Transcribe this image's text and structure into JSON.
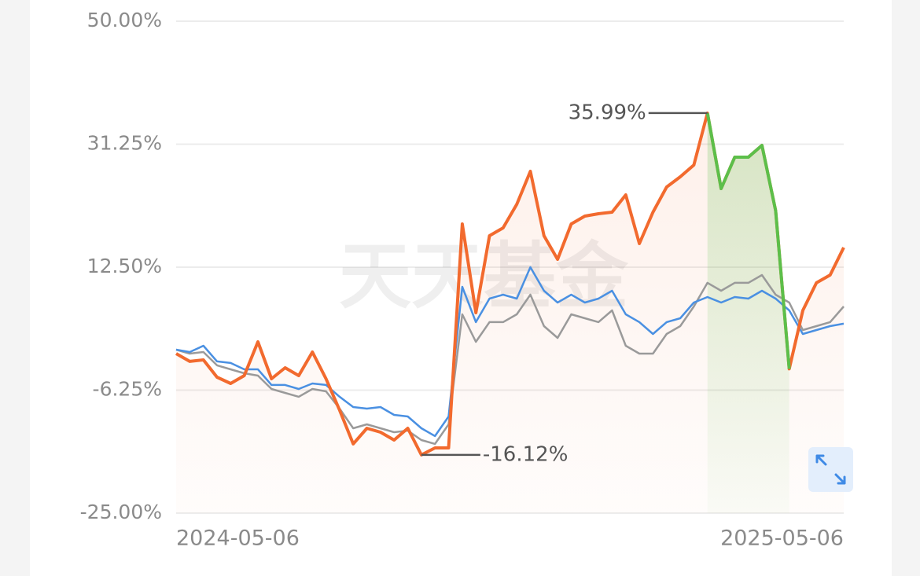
{
  "chart_data": {
    "type": "line",
    "watermark": "天天基金",
    "categories": [
      "2024-05-06",
      null,
      null,
      null,
      null,
      null,
      null,
      null,
      null,
      null,
      null,
      null,
      null,
      null,
      null,
      null,
      null,
      null,
      null,
      null,
      null,
      null,
      null,
      null,
      null,
      null,
      null,
      null,
      null,
      null,
      null,
      null,
      null,
      null,
      null,
      null,
      null,
      null,
      null,
      null,
      null,
      null,
      null,
      null,
      null,
      null,
      null,
      null,
      null,
      "2025-05-06"
    ],
    "series": [
      {
        "color": "#f26a2e",
        "values": [
          -0.68,
          -1.87,
          -1.64,
          -4.27,
          -5.23,
          -4.03,
          1.12,
          -4.51,
          -2.83,
          -4.03,
          -0.44,
          -4.51,
          -9.3,
          -14.45,
          -12.06,
          -12.66,
          -13.86,
          -12.06,
          -16.12,
          -15.05,
          -15.05,
          19.09,
          5.55,
          17.29,
          18.49,
          22.09,
          27.12,
          17.29,
          13.7,
          19.09,
          20.29,
          20.65,
          20.89,
          23.52,
          16.1,
          20.89,
          24.72,
          26.28,
          28.08,
          35.99,
          24.48,
          29.27,
          29.27,
          31.07,
          21.13,
          -3.0,
          5.91,
          10.11,
          11.3,
          15.5
        ]
      },
      {
        "color": "#4a90e2",
        "values": [
          -0.08,
          -0.44,
          0.52,
          -1.87,
          -2.11,
          -3.07,
          -3.07,
          -5.46,
          -5.46,
          -6.07,
          -5.23,
          -5.46,
          -7.26,
          -8.82,
          -9.06,
          -8.82,
          -10.02,
          -10.26,
          -12.06,
          -13.25,
          -10.26,
          9.51,
          4.12,
          7.71,
          8.31,
          7.71,
          12.5,
          8.91,
          7.11,
          8.31,
          7.11,
          7.71,
          8.91,
          5.31,
          4.12,
          2.32,
          4.12,
          4.71,
          7.11,
          7.95,
          7.11,
          7.95,
          7.71,
          8.91,
          7.71,
          5.91,
          2.32,
          2.92,
          3.52,
          3.88
        ]
      },
      {
        "color": "#9a9a9a",
        "values": [
          -0.08,
          -0.68,
          -0.44,
          -2.47,
          -3.07,
          -3.67,
          -4.03,
          -6.07,
          -6.67,
          -7.26,
          -6.07,
          -6.43,
          -9.06,
          -12.06,
          -11.46,
          -12.06,
          -12.66,
          -12.42,
          -13.86,
          -14.45,
          -11.46,
          5.31,
          1.12,
          4.12,
          4.12,
          5.31,
          8.31,
          3.52,
          1.72,
          5.31,
          4.71,
          4.12,
          5.91,
          0.52,
          -0.68,
          -0.68,
          2.32,
          3.52,
          6.51,
          10.11,
          8.91,
          10.11,
          10.11,
          11.3,
          8.31,
          7.11,
          2.92,
          3.52,
          4.12,
          6.51
        ]
      }
    ],
    "drawdown_color": "#5cbf4a",
    "annotations": [
      {
        "value": 35.99,
        "label": "35.99%"
      },
      {
        "value": -16.12,
        "label": "-16.12%"
      }
    ],
    "ylim": [
      -25,
      50
    ],
    "yticks": [
      {
        "value": -25,
        "label": "-25.00%"
      },
      {
        "value": -6.25,
        "label": "-6.25%"
      },
      {
        "value": 12.5,
        "label": "12.50%"
      },
      {
        "value": 31.25,
        "label": "31.25%"
      },
      {
        "value": 50,
        "label": "50.00%"
      }
    ],
    "grid": true
  }
}
